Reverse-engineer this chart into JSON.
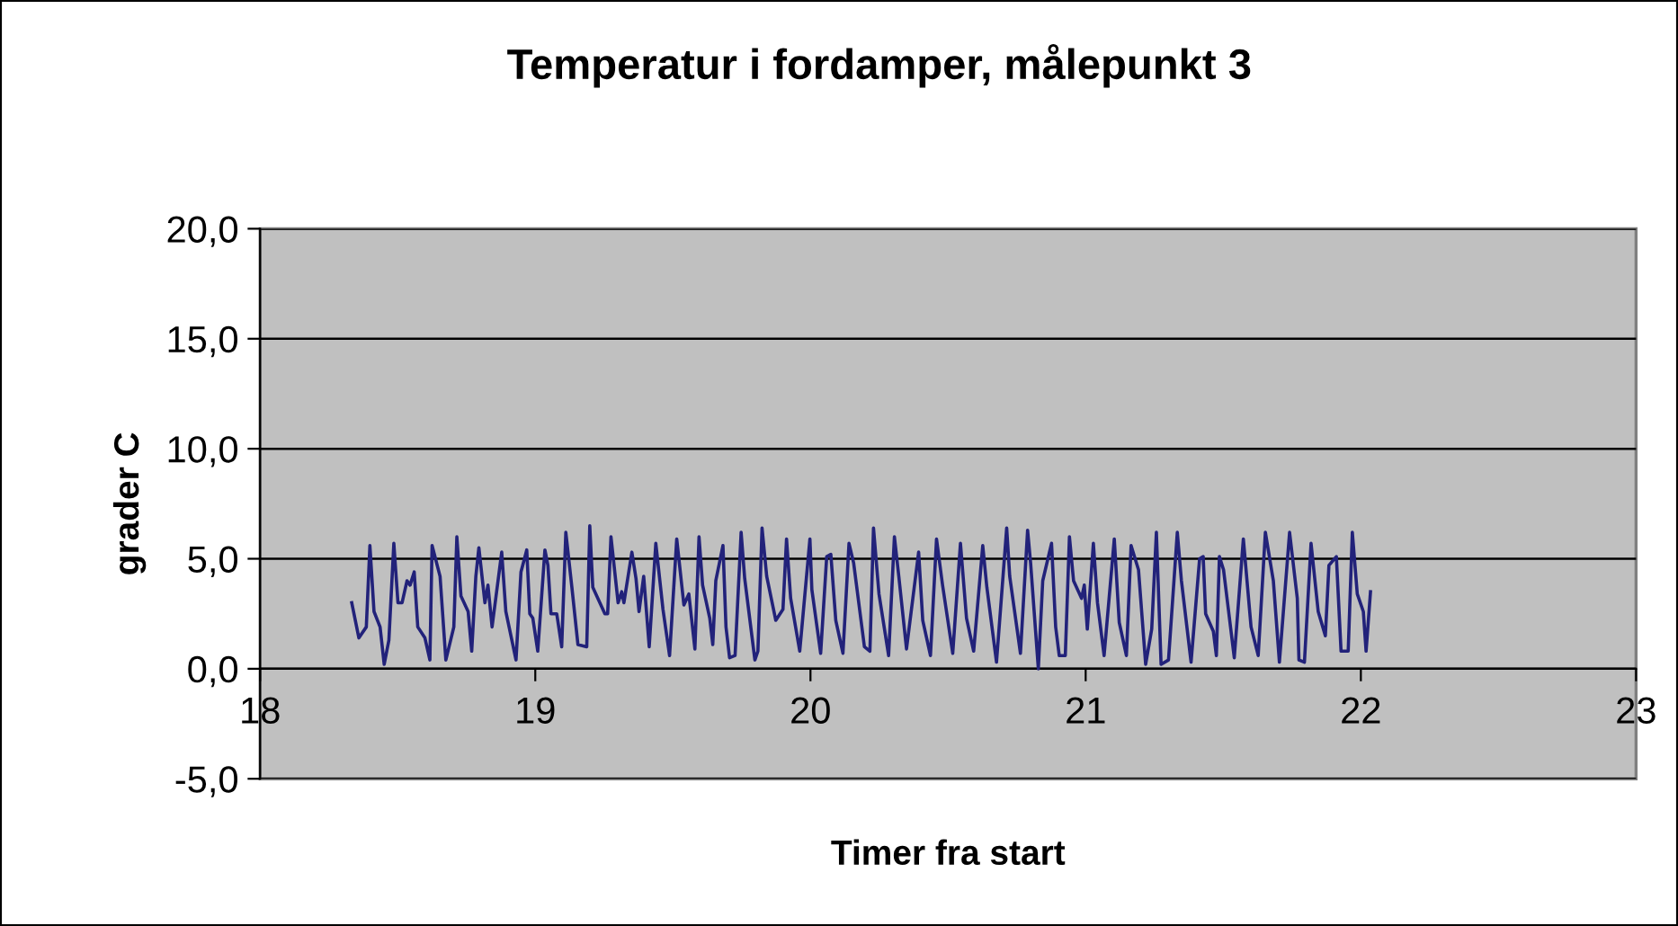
{
  "chart_data": {
    "type": "line",
    "title": "Temperatur i fordamper, målepunkt 3",
    "xlabel": "Timer fra start",
    "ylabel": "grader C",
    "xlim": [
      18,
      23
    ],
    "xticks": [
      18,
      19,
      20,
      21,
      22,
      23
    ],
    "ylim": [
      -5,
      20
    ],
    "yticks": [
      {
        "value": -5,
        "label": "-5,0"
      },
      {
        "value": 0,
        "label": "0,0"
      },
      {
        "value": 5,
        "label": "5,0"
      },
      {
        "value": 10,
        "label": "10,0"
      },
      {
        "value": 15,
        "label": "15,0"
      },
      {
        "value": 20,
        "label": "20,0"
      }
    ],
    "grid": "y",
    "marker": "none",
    "line_style": "solid",
    "series": [
      {
        "color": "#22227a",
        "x": [
          18.333,
          18.359,
          18.386,
          18.399,
          18.414,
          18.436,
          18.451,
          18.468,
          18.486,
          18.501,
          18.516,
          18.534,
          18.545,
          18.56,
          18.573,
          18.599,
          18.617,
          18.625,
          18.654,
          18.675,
          18.704,
          18.715,
          18.73,
          18.756,
          18.769,
          18.784,
          18.795,
          18.817,
          18.828,
          18.843,
          18.878,
          18.893,
          18.93,
          18.948,
          18.969,
          18.98,
          18.991,
          19.009,
          19.035,
          19.046,
          19.057,
          19.078,
          19.096,
          19.111,
          19.133,
          19.155,
          19.187,
          19.198,
          19.209,
          19.253,
          19.263,
          19.275,
          19.301,
          19.314,
          19.322,
          19.351,
          19.366,
          19.377,
          19.394,
          19.414,
          19.438,
          19.464,
          19.488,
          19.514,
          19.54,
          19.558,
          19.58,
          19.595,
          19.608,
          19.634,
          19.645,
          19.656,
          19.682,
          19.693,
          19.706,
          19.726,
          19.748,
          19.761,
          19.798,
          19.809,
          19.824,
          19.841,
          19.874,
          19.9,
          19.913,
          19.928,
          19.961,
          19.998,
          20.005,
          20.037,
          20.059,
          20.074,
          20.092,
          20.118,
          20.14,
          20.157,
          20.196,
          20.216,
          20.229,
          20.249,
          20.284,
          20.305,
          20.321,
          20.349,
          20.393,
          20.408,
          20.436,
          20.458,
          20.48,
          20.517,
          20.545,
          20.567,
          20.593,
          20.626,
          20.641,
          20.676,
          20.713,
          20.724,
          20.763,
          20.789,
          20.8,
          20.828,
          20.844,
          20.876,
          20.891,
          20.904,
          20.926,
          20.941,
          20.956,
          20.985,
          20.995,
          21.006,
          21.028,
          21.043,
          21.067,
          21.104,
          21.122,
          21.148,
          21.165,
          21.192,
          21.218,
          21.24,
          21.257,
          21.274,
          21.301,
          21.333,
          21.348,
          21.383,
          21.414,
          21.427,
          21.436,
          21.464,
          21.475,
          21.486,
          21.501,
          21.54,
          21.573,
          21.601,
          21.627,
          21.653,
          21.682,
          21.704,
          21.741,
          21.769,
          21.775,
          21.795,
          21.819,
          21.845,
          21.871,
          21.884,
          21.911,
          21.928,
          21.954,
          21.969,
          21.987,
          22.009,
          22.019,
          22.035
        ],
        "values": [
          3.0,
          1.4,
          1.9,
          5.6,
          2.6,
          1.9,
          0.2,
          1.3,
          5.7,
          3.0,
          3.0,
          4.0,
          3.8,
          4.4,
          1.9,
          1.4,
          0.4,
          5.6,
          4.2,
          0.4,
          1.9,
          6.0,
          3.3,
          2.6,
          0.8,
          4.2,
          5.5,
          3.0,
          3.8,
          1.9,
          5.3,
          2.6,
          0.4,
          4.4,
          5.4,
          2.5,
          2.3,
          0.8,
          5.4,
          4.7,
          2.5,
          2.5,
          1.0,
          6.2,
          3.7,
          1.1,
          1.0,
          6.5,
          3.7,
          2.5,
          2.5,
          6.0,
          3.0,
          3.5,
          3.0,
          5.3,
          4.1,
          2.6,
          4.2,
          1.0,
          5.7,
          2.7,
          0.6,
          5.9,
          2.9,
          3.4,
          0.9,
          6.0,
          3.8,
          2.3,
          1.1,
          4.0,
          5.6,
          1.9,
          0.5,
          0.6,
          6.2,
          4.1,
          0.4,
          0.8,
          6.4,
          4.2,
          2.2,
          2.7,
          5.9,
          3.2,
          0.8,
          5.9,
          3.6,
          0.7,
          5.1,
          5.2,
          2.2,
          0.7,
          5.7,
          4.8,
          1.0,
          0.8,
          6.4,
          3.4,
          0.6,
          6.0,
          4.2,
          0.9,
          5.3,
          2.2,
          0.6,
          5.9,
          3.8,
          0.7,
          5.7,
          2.3,
          0.8,
          5.6,
          3.7,
          0.3,
          6.4,
          4.2,
          0.7,
          6.3,
          4.8,
          0.0,
          4.0,
          5.7,
          1.9,
          0.6,
          0.6,
          6.0,
          4.0,
          3.2,
          3.8,
          1.8,
          5.7,
          3.0,
          0.6,
          5.9,
          2.1,
          0.6,
          5.6,
          4.5,
          0.2,
          1.8,
          6.2,
          0.2,
          0.4,
          6.2,
          4.0,
          0.3,
          5.0,
          5.1,
          2.5,
          1.7,
          0.6,
          5.1,
          4.5,
          0.5,
          5.9,
          1.9,
          0.6,
          6.2,
          4.0,
          0.3,
          6.2,
          3.2,
          0.4,
          0.3,
          5.7,
          2.6,
          1.5,
          4.7,
          5.1,
          0.8,
          0.8,
          6.2,
          3.4,
          2.6,
          0.8,
          3.5
        ]
      }
    ]
  }
}
